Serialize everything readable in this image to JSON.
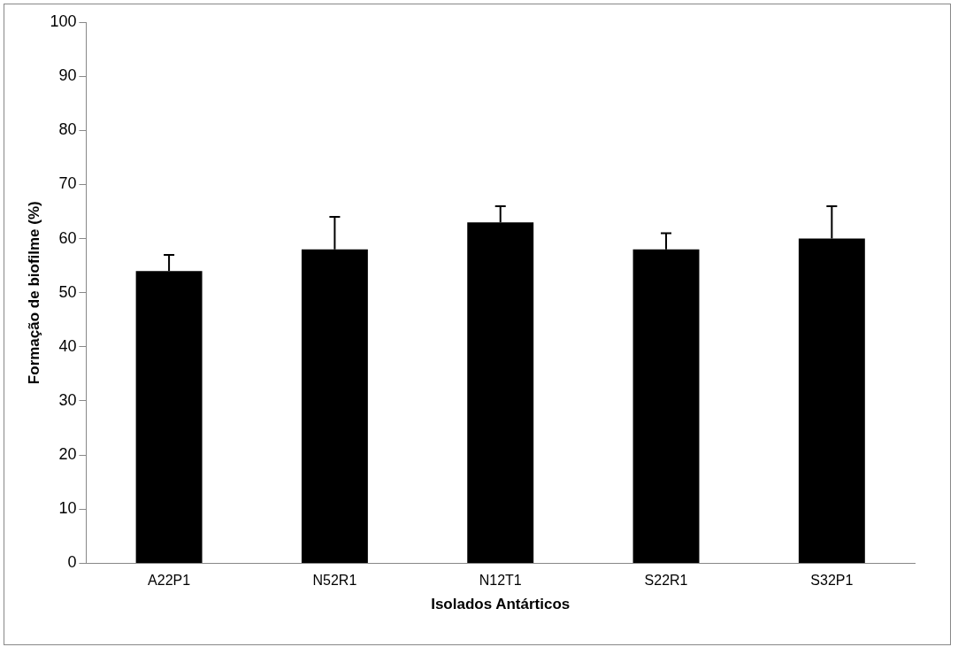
{
  "chart_data": {
    "type": "bar",
    "xlabel": "Isolados Antárticos",
    "ylabel": "Formação de biofilme (%)",
    "categories": [
      "A22P1",
      "N52R1",
      "N12T1",
      "S22R1",
      "S32P1"
    ],
    "values": [
      54,
      58,
      63,
      58,
      60
    ],
    "errors": [
      [
        54,
        57
      ],
      [
        58,
        64
      ],
      [
        63,
        66
      ],
      [
        58,
        61
      ],
      [
        60,
        66
      ]
    ],
    "color": "#000000",
    "ylim": [
      0,
      100
    ],
    "yticks": [
      0,
      10,
      20,
      30,
      40,
      50,
      60,
      70,
      80,
      90,
      100
    ],
    "grid": false,
    "legend": false
  }
}
